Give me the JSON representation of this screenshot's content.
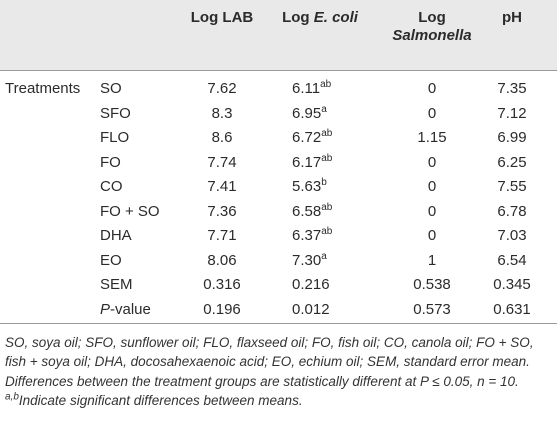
{
  "table": {
    "columns": [
      {
        "label": "Log LAB"
      },
      {
        "label": "Log",
        "italic": "E. coli"
      },
      {
        "label": "Log",
        "italic": "Salmonella"
      },
      {
        "label": "pH"
      }
    ],
    "group": "Treatments",
    "rows": [
      {
        "label": "SO",
        "cells": [
          "7.62",
          {
            "value": "6.11",
            "sup": "ab"
          },
          "0",
          "7.35"
        ]
      },
      {
        "label": "SFO",
        "cells": [
          "8.3",
          {
            "value": "6.95",
            "sup": "a"
          },
          "0",
          "7.12"
        ]
      },
      {
        "label": "FLO",
        "cells": [
          "8.6",
          {
            "value": "6.72",
            "sup": "ab"
          },
          "1.15",
          "6.99"
        ]
      },
      {
        "label": "FO",
        "cells": [
          "7.74",
          {
            "value": "6.17",
            "sup": "ab"
          },
          "0",
          "6.25"
        ]
      },
      {
        "label": "CO",
        "cells": [
          "7.41",
          {
            "value": "5.63",
            "sup": "b"
          },
          "0",
          "7.55"
        ]
      },
      {
        "label": "FO + SO",
        "cells": [
          "7.36",
          {
            "value": "6.58",
            "sup": "ab"
          },
          "0",
          "6.78"
        ]
      },
      {
        "label": "DHA",
        "cells": [
          "7.71",
          {
            "value": "6.37",
            "sup": "ab"
          },
          "0",
          "7.03"
        ]
      },
      {
        "label": "EO",
        "cells": [
          "8.06",
          {
            "value": "7.30",
            "sup": "a"
          },
          "1",
          "6.54"
        ]
      },
      {
        "label": "SEM",
        "cells": [
          "0.316",
          "0.216",
          "0.538",
          "0.345"
        ]
      },
      {
        "label": {
          "italic": "P",
          "text": "-value"
        },
        "cells": [
          "0.196",
          "0.012",
          "0.573",
          "0.631"
        ]
      }
    ]
  },
  "footnote": {
    "lines": [
      "SO, soya oil; SFO, sunflower oil; FLO, flaxseed oil; FO, fish oil; CO, canola oil; FO + SO,",
      "fish + soya oil; DHA, docosahexaenoic acid; EO, echium oil; SEM, standard error mean.",
      "Differences between the treatment groups are statistically different at P ≤ 0.05, n = 10."
    ],
    "sup": "a,b",
    "note": "Indicate significant differences between means."
  }
}
